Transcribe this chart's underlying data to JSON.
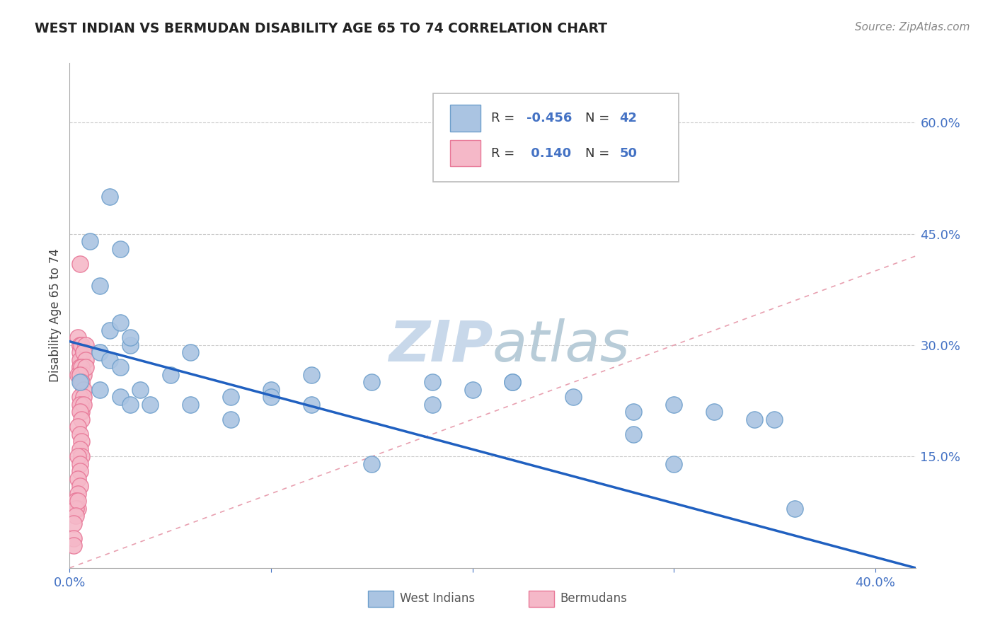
{
  "title": "WEST INDIAN VS BERMUDAN DISABILITY AGE 65 TO 74 CORRELATION CHART",
  "source": "Source: ZipAtlas.com",
  "ylabel": "Disability Age 65 to 74",
  "right_ytick_labels": [
    "15.0%",
    "30.0%",
    "45.0%",
    "60.0%"
  ],
  "right_ytick_values": [
    0.15,
    0.3,
    0.45,
    0.6
  ],
  "xlim": [
    0.0,
    0.42
  ],
  "ylim": [
    0.0,
    0.68
  ],
  "legend_r_west": "-0.456",
  "legend_n_west": "42",
  "legend_r_berm": " 0.140",
  "legend_n_berm": "50",
  "west_indian_color": "#aac4e2",
  "west_indian_edge": "#6fa0cc",
  "bermudan_color": "#f5b8c8",
  "bermudan_edge": "#e87898",
  "trend_line_west_color": "#2060c0",
  "ref_line_color": "#e8a0b0",
  "watermark_color": "#c8d8ea",
  "west_x": [
    0.02,
    0.025,
    0.01,
    0.015,
    0.02,
    0.025,
    0.03,
    0.015,
    0.02,
    0.025,
    0.03,
    0.005,
    0.015,
    0.025,
    0.035,
    0.05,
    0.06,
    0.08,
    0.1,
    0.12,
    0.15,
    0.18,
    0.2,
    0.22,
    0.25,
    0.28,
    0.3,
    0.32,
    0.34,
    0.36,
    0.35,
    0.3,
    0.28,
    0.22,
    0.18,
    0.15,
    0.12,
    0.1,
    0.08,
    0.06,
    0.04,
    0.03
  ],
  "west_y": [
    0.5,
    0.43,
    0.44,
    0.38,
    0.32,
    0.33,
    0.3,
    0.29,
    0.28,
    0.27,
    0.31,
    0.25,
    0.24,
    0.23,
    0.24,
    0.26,
    0.29,
    0.23,
    0.24,
    0.26,
    0.25,
    0.25,
    0.24,
    0.25,
    0.23,
    0.21,
    0.22,
    0.21,
    0.2,
    0.08,
    0.2,
    0.14,
    0.18,
    0.25,
    0.22,
    0.14,
    0.22,
    0.23,
    0.2,
    0.22,
    0.22,
    0.22
  ],
  "berm_x": [
    0.005,
    0.005,
    0.004,
    0.005,
    0.005,
    0.006,
    0.007,
    0.008,
    0.006,
    0.005,
    0.005,
    0.007,
    0.008,
    0.005,
    0.004,
    0.006,
    0.005,
    0.007,
    0.008,
    0.006,
    0.005,
    0.006,
    0.007,
    0.005,
    0.006,
    0.007,
    0.005,
    0.006,
    0.007,
    0.005,
    0.006,
    0.004,
    0.005,
    0.006,
    0.005,
    0.006,
    0.004,
    0.005,
    0.005,
    0.004,
    0.005,
    0.004,
    0.003,
    0.004,
    0.003,
    0.004,
    0.003,
    0.002,
    0.002,
    0.002
  ],
  "berm_y": [
    0.41,
    0.3,
    0.31,
    0.3,
    0.29,
    0.3,
    0.29,
    0.3,
    0.28,
    0.27,
    0.28,
    0.29,
    0.28,
    0.27,
    0.26,
    0.27,
    0.26,
    0.26,
    0.27,
    0.25,
    0.26,
    0.25,
    0.24,
    0.23,
    0.22,
    0.23,
    0.22,
    0.21,
    0.22,
    0.21,
    0.2,
    0.19,
    0.18,
    0.17,
    0.16,
    0.15,
    0.15,
    0.14,
    0.13,
    0.12,
    0.11,
    0.1,
    0.09,
    0.08,
    0.08,
    0.09,
    0.07,
    0.06,
    0.04,
    0.03
  ],
  "blue_line_x0": 0.0,
  "blue_line_y0": 0.305,
  "blue_line_x1": 0.42,
  "blue_line_y1": 0.0
}
